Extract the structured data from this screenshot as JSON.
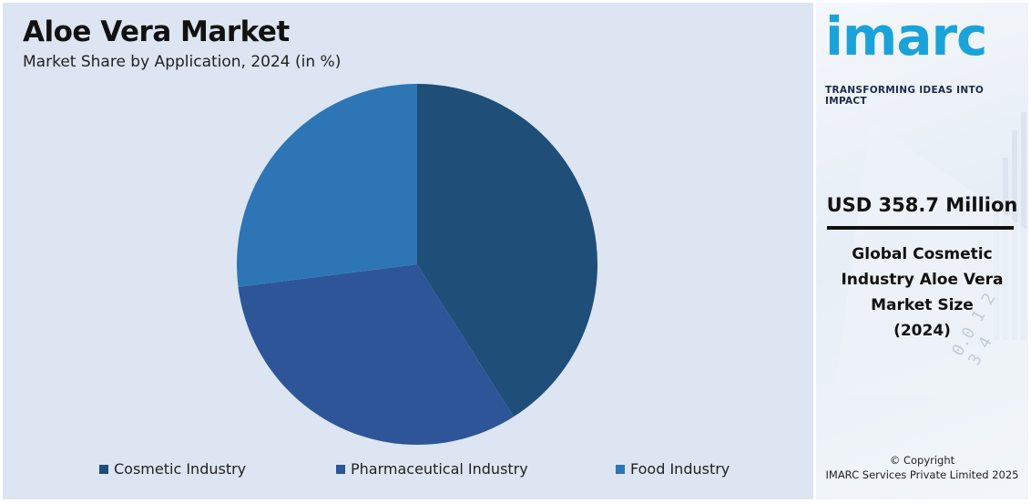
{
  "header": {
    "title": "Aloe Vera Market",
    "subtitle": "Market Share by Application, 2024 (in %)"
  },
  "chart_data": {
    "type": "pie",
    "title": "Aloe Vera Market",
    "subtitle": "Market Share by Application, 2024 (in %)",
    "categories": [
      "Cosmetic Industry",
      "Pharmaceutical Industry",
      "Food Industry"
    ],
    "values": [
      41,
      32,
      27
    ],
    "colors": [
      "#1f4e79",
      "#2e5597",
      "#2e75b6"
    ],
    "start_angle_deg": 0,
    "direction": "clockwise",
    "legend_position": "bottom"
  },
  "sidebar": {
    "logo_text": "imarc",
    "tagline": "TRANSFORMING IDEAS INTO IMPACT",
    "market_value": "USD 358.7 Million",
    "market_desc_lines": [
      "Global Cosmetic",
      "Industry Aloe Vera",
      "Market Size",
      "(2024)"
    ],
    "copyright_line1": "© Copyright",
    "copyright_line2": "IMARC Services Private Limited 2025",
    "accent_color": "#1aa3d8"
  }
}
